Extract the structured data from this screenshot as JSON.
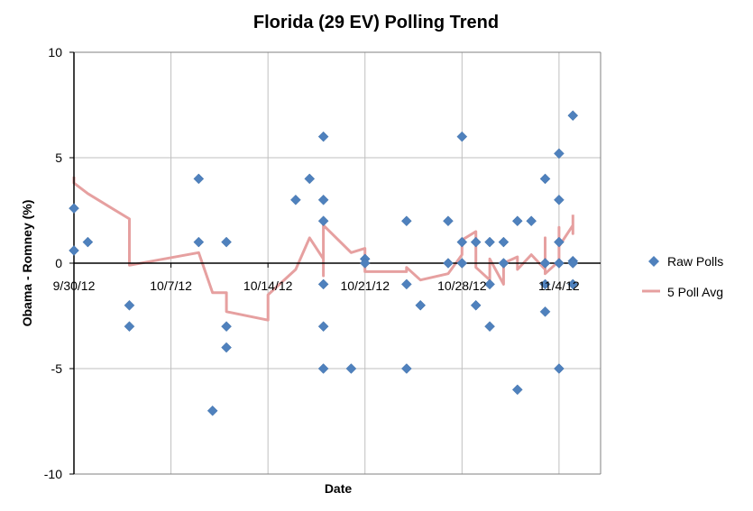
{
  "chart_data": {
    "type": "scatter",
    "title": "Florida (29 EV) Polling Trend",
    "xlabel": "Date",
    "ylabel": "Obama - Romney (%)",
    "ylim": [
      -10,
      10
    ],
    "yticks": [
      10,
      5,
      0,
      -5,
      -10
    ],
    "ytick_labels": [
      "10",
      "5",
      "0",
      "-5",
      "-10"
    ],
    "xlim": [
      "2012-09-30",
      "2012-11-07"
    ],
    "xticks": [
      "2012-09-30",
      "2012-10-07",
      "2012-10-14",
      "2012-10-21",
      "2012-10-28",
      "2012-11-04"
    ],
    "xtick_labels": [
      "9/30/12",
      "10/7/12",
      "10/14/12",
      "10/21/12",
      "10/28/12",
      "11/4/12"
    ],
    "grid": true,
    "legend_position": "right",
    "colors": {
      "raw_polls": "#4f81bd",
      "avg_line": "#e6a0a0",
      "grid": "#bfbfbf",
      "frame": "#808080"
    },
    "series": [
      {
        "name": "Raw Polls",
        "kind": "scatter",
        "points": [
          [
            "2012-09-30",
            2.6
          ],
          [
            "2012-09-30",
            0.6
          ],
          [
            "2012-10-01",
            1
          ],
          [
            "2012-10-04",
            -2
          ],
          [
            "2012-10-04",
            -3
          ],
          [
            "2012-10-09",
            4
          ],
          [
            "2012-10-09",
            1
          ],
          [
            "2012-10-10",
            -7
          ],
          [
            "2012-10-11",
            1
          ],
          [
            "2012-10-11",
            -3
          ],
          [
            "2012-10-11",
            -4
          ],
          [
            "2012-10-16",
            3
          ],
          [
            "2012-10-17",
            4
          ],
          [
            "2012-10-18",
            6
          ],
          [
            "2012-10-18",
            3
          ],
          [
            "2012-10-18",
            2
          ],
          [
            "2012-10-18",
            -1
          ],
          [
            "2012-10-18",
            -3
          ],
          [
            "2012-10-18",
            -5
          ],
          [
            "2012-10-20",
            -5
          ],
          [
            "2012-10-21",
            0.2
          ],
          [
            "2012-10-21",
            0
          ],
          [
            "2012-10-24",
            2
          ],
          [
            "2012-10-24",
            -1
          ],
          [
            "2012-10-24",
            -5
          ],
          [
            "2012-10-25",
            -2
          ],
          [
            "2012-10-27",
            2
          ],
          [
            "2012-10-27",
            0
          ],
          [
            "2012-10-28",
            6
          ],
          [
            "2012-10-28",
            1
          ],
          [
            "2012-10-28",
            0
          ],
          [
            "2012-10-29",
            1
          ],
          [
            "2012-10-29",
            -2
          ],
          [
            "2012-10-30",
            1
          ],
          [
            "2012-10-30",
            -3
          ],
          [
            "2012-10-30",
            -1
          ],
          [
            "2012-10-31",
            1
          ],
          [
            "2012-10-31",
            0
          ],
          [
            "2012-11-01",
            2
          ],
          [
            "2012-11-01",
            -6
          ],
          [
            "2012-11-02",
            2
          ],
          [
            "2012-11-03",
            4
          ],
          [
            "2012-11-03",
            0
          ],
          [
            "2012-11-03",
            -1
          ],
          [
            "2012-11-03",
            -2.3
          ],
          [
            "2012-11-04",
            5.2
          ],
          [
            "2012-11-04",
            3
          ],
          [
            "2012-11-04",
            1
          ],
          [
            "2012-11-04",
            0
          ],
          [
            "2012-11-04",
            -5
          ],
          [
            "2012-11-05",
            7
          ],
          [
            "2012-11-05",
            0.1
          ],
          [
            "2012-11-05",
            0
          ],
          [
            "2012-11-05",
            -1
          ]
        ]
      },
      {
        "name": "5 Poll Avg",
        "kind": "line",
        "points": [
          [
            "2012-09-30",
            4.1
          ],
          [
            "2012-09-30",
            3.8
          ],
          [
            "2012-10-01",
            3.3
          ],
          [
            "2012-10-04",
            2.1
          ],
          [
            "2012-10-04",
            -0.1
          ],
          [
            "2012-10-09",
            0.5
          ],
          [
            "2012-10-10",
            -1.4
          ],
          [
            "2012-10-11",
            -1.4
          ],
          [
            "2012-10-11",
            -2.3
          ],
          [
            "2012-10-14",
            -2.7
          ],
          [
            "2012-10-14",
            -1.5
          ],
          [
            "2012-10-16",
            -0.3
          ],
          [
            "2012-10-17",
            1.2
          ],
          [
            "2012-10-18",
            0.2
          ],
          [
            "2012-10-18",
            1.8
          ],
          [
            "2012-10-18",
            -0.6
          ],
          [
            "2012-10-18",
            1.8
          ],
          [
            "2012-10-20",
            0.5
          ],
          [
            "2012-10-21",
            0.7
          ],
          [
            "2012-10-21",
            -0.4
          ],
          [
            "2012-10-24",
            -0.4
          ],
          [
            "2012-10-24",
            -0.2
          ],
          [
            "2012-10-25",
            -0.8
          ],
          [
            "2012-10-27",
            -0.5
          ],
          [
            "2012-10-28",
            0.4
          ],
          [
            "2012-10-28",
            1.1
          ],
          [
            "2012-10-29",
            1.5
          ],
          [
            "2012-10-29",
            -0.2
          ],
          [
            "2012-10-30",
            -0.8
          ],
          [
            "2012-10-30",
            0.2
          ],
          [
            "2012-10-31",
            -1
          ],
          [
            "2012-10-31",
            0
          ],
          [
            "2012-11-01",
            0.3
          ],
          [
            "2012-11-01",
            -0.3
          ],
          [
            "2012-11-02",
            0.4
          ],
          [
            "2012-11-03",
            -0.3
          ],
          [
            "2012-11-03",
            1.2
          ],
          [
            "2012-11-03",
            -0.5
          ],
          [
            "2012-11-04",
            0.1
          ],
          [
            "2012-11-04",
            1.7
          ],
          [
            "2012-11-04",
            0.8
          ],
          [
            "2012-11-05",
            1.8
          ],
          [
            "2012-11-05",
            1.4
          ],
          [
            "2012-11-05",
            2.3
          ]
        ]
      }
    ]
  }
}
